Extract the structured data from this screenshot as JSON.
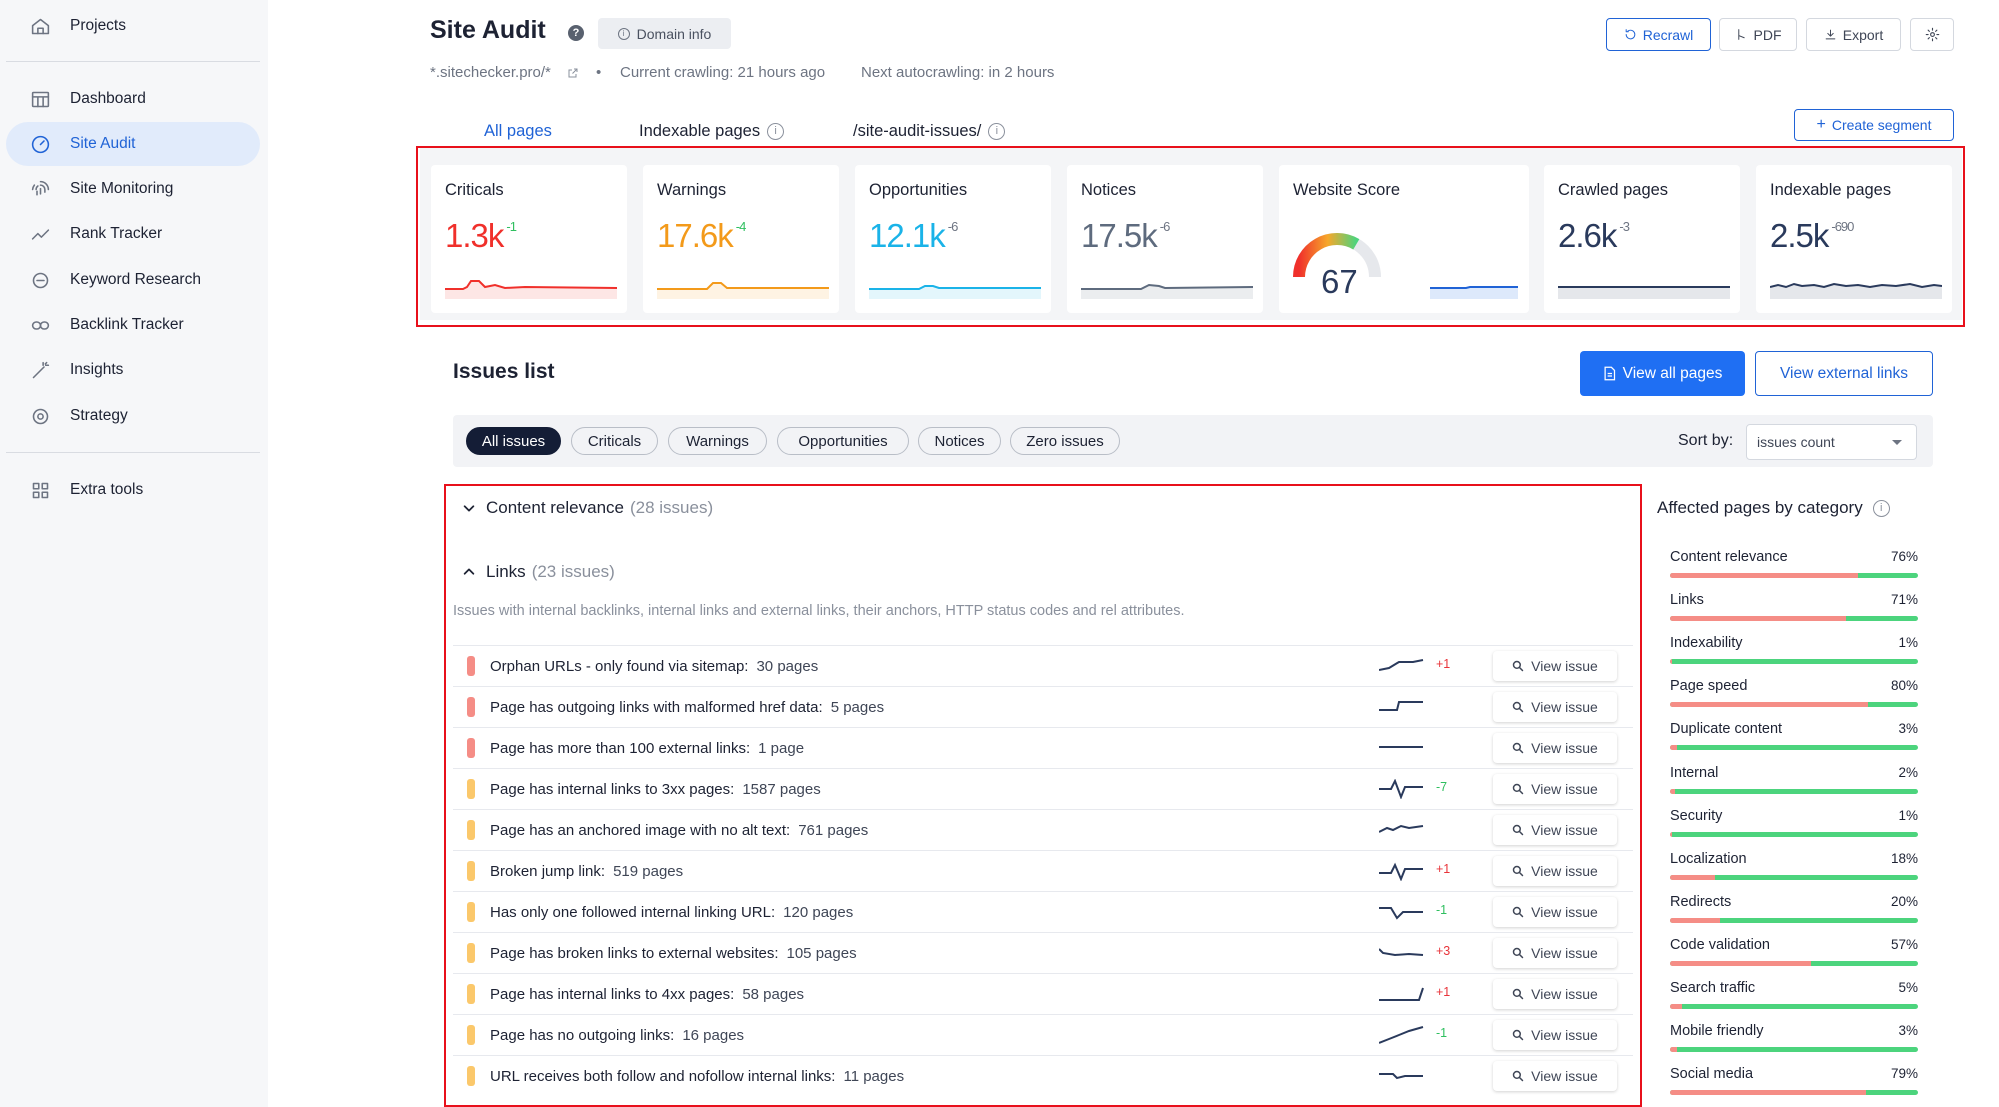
{
  "sidebar": {
    "items": [
      {
        "label": "Projects",
        "icon": "home-icon"
      },
      {
        "label": "Dashboard",
        "icon": "dashboard-icon"
      },
      {
        "label": "Site Audit",
        "icon": "gauge-icon",
        "active": true
      },
      {
        "label": "Site Monitoring",
        "icon": "fingerprint-icon"
      },
      {
        "label": "Rank Tracker",
        "icon": "trend-icon"
      },
      {
        "label": "Keyword Research",
        "icon": "keyword-icon"
      },
      {
        "label": "Backlink Tracker",
        "icon": "link-icon"
      },
      {
        "label": "Insights",
        "icon": "wand-icon"
      },
      {
        "label": "Strategy",
        "icon": "target-icon"
      },
      {
        "label": "Extra tools",
        "icon": "grid-icon"
      }
    ]
  },
  "header": {
    "title": "Site Audit",
    "help": "?",
    "domain_info": "Domain info",
    "recrawl": "Recrawl",
    "pdf": "PDF",
    "export": "Export",
    "site": "*.sitechecker.pro/*",
    "bullet": "•",
    "current_crawling": "Current crawling: 21 hours ago",
    "next_autocrawling": "Next autocrawling: in 2 hours"
  },
  "tabs": [
    {
      "label": "All pages",
      "active": true
    },
    {
      "label": "Indexable pages"
    },
    {
      "label": "/site-audit-issues/"
    }
  ],
  "create_segment": "Create segment",
  "cards": [
    {
      "label": "Criticals",
      "value": "1.3k",
      "delta": "-1",
      "color": "#f0302b",
      "delta_color": "#2fbf5f"
    },
    {
      "label": "Warnings",
      "value": "17.6k",
      "delta": "-4",
      "color": "#f39a1a",
      "delta_color": "#2fbf5f"
    },
    {
      "label": "Opportunities",
      "value": "12.1k",
      "delta": "-6",
      "color": "#1ab3e8",
      "delta_color": "#6d7482"
    },
    {
      "label": "Notices",
      "value": "17.5k",
      "delta": "-6",
      "color": "#5e6b7e",
      "delta_color": "#6d7482"
    },
    {
      "label": "Crawled pages",
      "value": "2.6k",
      "delta": "-3",
      "color": "#2a3a5c",
      "delta_color": "#6d7482"
    },
    {
      "label": "Indexable pages",
      "value": "2.5k",
      "delta": "-690",
      "color": "#2a3a5c",
      "delta_color": "#6d7482"
    }
  ],
  "website_score": {
    "label": "Website Score",
    "value": "67",
    "score": 67
  },
  "issues": {
    "title": "Issues list",
    "view_all_pages": "View all pages",
    "view_external_links": "View external links",
    "filters": [
      "All issues",
      "Criticals",
      "Warnings",
      "Opportunities",
      "Notices",
      "Zero issues"
    ],
    "sort_label": "Sort by:",
    "sort_value": "issues count",
    "groups": [
      {
        "label": "Content relevance",
        "count": "(28 issues)",
        "expanded": false
      },
      {
        "label": "Links",
        "count": "(23 issues)",
        "expanded": true
      }
    ],
    "links_description": "Issues with internal backlinks, internal links and external links, their anchors, HTTP status codes and rel attributes.",
    "view_issue": "View issue",
    "rows": [
      {
        "name": "Orphan URLs - only found via sitemap:",
        "pages": "30 pages",
        "severity": "critical",
        "delta": "+1",
        "delta_color": "#e8343a"
      },
      {
        "name": "Page has outgoing links with malformed href data:",
        "pages": "5 pages",
        "severity": "critical",
        "delta": "",
        "delta_color": "#6d7482"
      },
      {
        "name": "Page has more than 100 external links:",
        "pages": "1 page",
        "severity": "critical",
        "delta": "",
        "delta_color": "#6d7482"
      },
      {
        "name": "Page has internal links to 3xx pages:",
        "pages": "1587 pages",
        "severity": "warning",
        "delta": "-7",
        "delta_color": "#2fbf5f"
      },
      {
        "name": "Page has an anchored image with no alt text:",
        "pages": "761 pages",
        "severity": "warning",
        "delta": "",
        "delta_color": "#6d7482"
      },
      {
        "name": "Broken jump link:",
        "pages": "519 pages",
        "severity": "warning",
        "delta": "+1",
        "delta_color": "#e8343a"
      },
      {
        "name": "Has only one followed internal linking URL:",
        "pages": "120 pages",
        "severity": "warning",
        "delta": "-1",
        "delta_color": "#2fbf5f"
      },
      {
        "name": "Page has broken links to external websites:",
        "pages": "105 pages",
        "severity": "warning",
        "delta": "+3",
        "delta_color": "#e8343a"
      },
      {
        "name": "Page has internal links to 4xx pages:",
        "pages": "58 pages",
        "severity": "warning",
        "delta": "+1",
        "delta_color": "#e8343a"
      },
      {
        "name": "Page has no outgoing links:",
        "pages": "16 pages",
        "severity": "warning",
        "delta": "-1",
        "delta_color": "#2fbf5f"
      },
      {
        "name": "URL receives both follow and nofollow internal links:",
        "pages": "11 pages",
        "severity": "warning",
        "delta": "",
        "delta_color": "#6d7482"
      }
    ]
  },
  "affected": {
    "title": "Affected pages by category",
    "categories": [
      {
        "label": "Content relevance",
        "percent": "76%",
        "value": 76
      },
      {
        "label": "Links",
        "percent": "71%",
        "value": 71
      },
      {
        "label": "Indexability",
        "percent": "1%",
        "value": 1
      },
      {
        "label": "Page speed",
        "percent": "80%",
        "value": 80
      },
      {
        "label": "Duplicate content",
        "percent": "3%",
        "value": 3
      },
      {
        "label": "Internal",
        "percent": "2%",
        "value": 2
      },
      {
        "label": "Security",
        "percent": "1%",
        "value": 1
      },
      {
        "label": "Localization",
        "percent": "18%",
        "value": 18
      },
      {
        "label": "Redirects",
        "percent": "20%",
        "value": 20
      },
      {
        "label": "Code validation",
        "percent": "57%",
        "value": 57
      },
      {
        "label": "Search traffic",
        "percent": "5%",
        "value": 5
      },
      {
        "label": "Mobile friendly",
        "percent": "3%",
        "value": 3
      },
      {
        "label": "Social media",
        "percent": "79%",
        "value": 79
      }
    ]
  },
  "colors": {
    "accent": "#2063d6",
    "critical": "#f58d86",
    "warning": "#fbc86b",
    "highlight_box": "#e8101b"
  }
}
